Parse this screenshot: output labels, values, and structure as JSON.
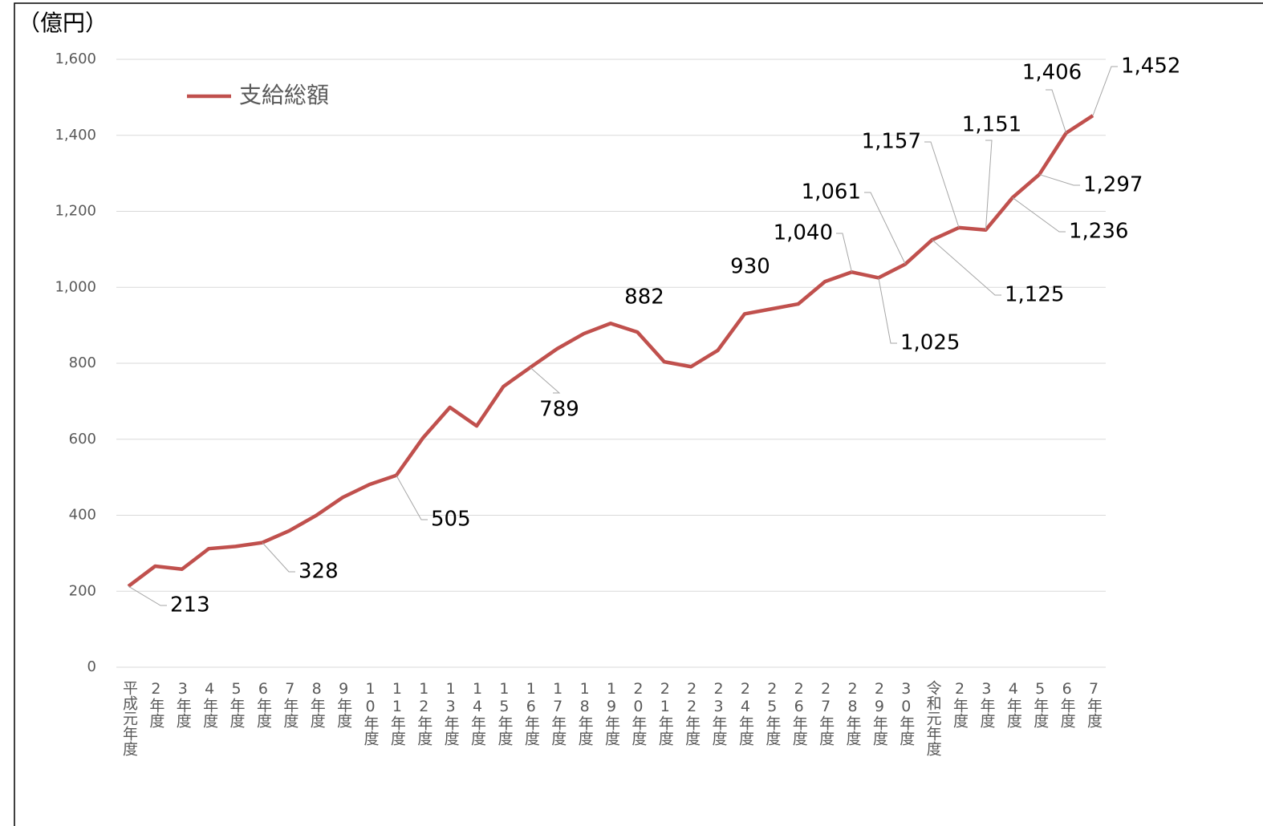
{
  "chart_data": {
    "type": "line",
    "y_label": "（億円）",
    "categories": [
      "平成元年度",
      "2年度",
      "3年度",
      "4年度",
      "5年度",
      "6年度",
      "7年度",
      "8年度",
      "9年度",
      "10年度",
      "11年度",
      "12年度",
      "13年度",
      "14年度",
      "15年度",
      "16年度",
      "17年度",
      "18年度",
      "19年度",
      "20年度",
      "21年度",
      "22年度",
      "23年度",
      "24年度",
      "25年度",
      "26年度",
      "27年度",
      "28年度",
      "29年度",
      "30年度",
      "令和元年度",
      "2年度",
      "3年度",
      "4年度",
      "5年度",
      "6年度",
      "7年度"
    ],
    "series": [
      {
        "name": "支給総額",
        "color": "#c0504d",
        "values": [
          213,
          266,
          258,
          312,
          318,
          328,
          359,
          399,
          447,
          481,
          505,
          604,
          684,
          635,
          739,
          789,
          838,
          878,
          905,
          882,
          804,
          791,
          834,
          930,
          943,
          956,
          1015,
          1040,
          1025,
          1061,
          1125,
          1157,
          1151,
          1236,
          1297,
          1406,
          1452
        ],
        "value_labels": [
          "213",
          null,
          null,
          null,
          null,
          "328",
          null,
          null,
          null,
          null,
          "505",
          null,
          null,
          null,
          null,
          "789",
          null,
          null,
          null,
          "882",
          null,
          null,
          null,
          "930",
          null,
          null,
          null,
          "1,040",
          "1,025",
          "1,061",
          "1,125",
          "1,157",
          "1,151",
          "1,236",
          "1,297",
          "1,406",
          "1,452"
        ]
      }
    ],
    "ylim": [
      0,
      1600
    ],
    "yticks": [
      0,
      200,
      400,
      600,
      800,
      {
        "value": 1000,
        "label": "1,000"
      },
      {
        "value": 1200,
        "label": "1,200"
      },
      {
        "value": 1400,
        "label": "1,400"
      },
      {
        "value": 1600,
        "label": "1,600"
      }
    ],
    "grid": true,
    "legend": "upper left"
  }
}
